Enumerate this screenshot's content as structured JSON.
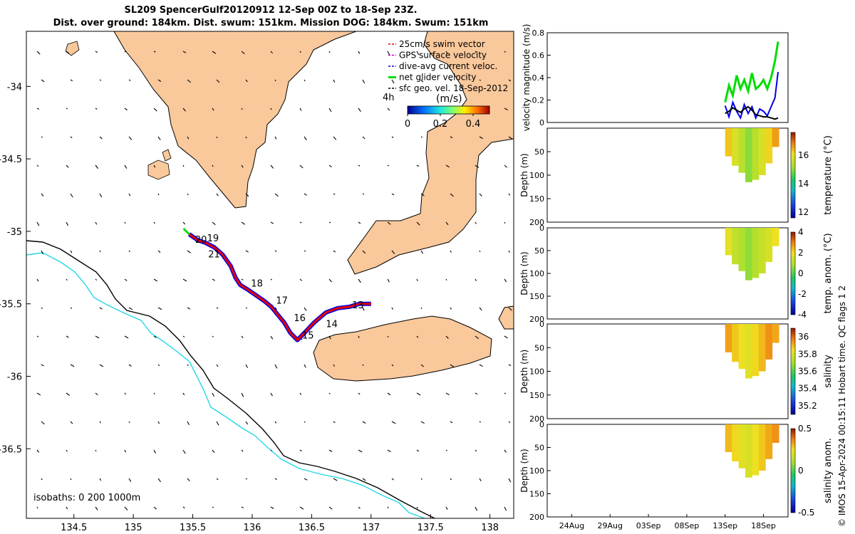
{
  "title": {
    "line1": "SL209 SpencerGulf20120912 12-Sep 00Z to 18-Sep 23Z.",
    "line2": "Dist. over ground: 184km. Dist. swum: 151km. Mission DOG: 184km. Swum: 151km"
  },
  "colors": {
    "land": "#f9c89b",
    "isobath_0": "#000000",
    "isobath_200": "#000000",
    "isobath_1000": "#22d8e6",
    "swim_vector": "#e60000",
    "gps_velocity": "#cc00cc",
    "dive_avg": "#0000e6",
    "net_glider": "#00dd00",
    "sfc_geo": "#000000"
  },
  "map": {
    "xticks": [
      "134.5",
      "135",
      "135.5",
      "136",
      "136.5",
      "137",
      "137.5",
      "138"
    ],
    "yticks": [
      "-34",
      "-34.5",
      "-35",
      "-35.5",
      "-36",
      "-36.5"
    ],
    "isobath_label": "isobaths: 0   200  1000m",
    "colorbar_label": "(m/s)",
    "colorbar_ticks": [
      "0",
      "0.2",
      "0.4"
    ],
    "time_marker": "4h",
    "day_labels": [
      {
        "text": "19",
        "lon": 135.62,
        "lat": -35.07
      },
      {
        "text": "20",
        "lon": 135.52,
        "lat": -35.08
      },
      {
        "text": "21",
        "lon": 135.63,
        "lat": -35.18
      },
      {
        "text": "18",
        "lon": 135.99,
        "lat": -35.38
      },
      {
        "text": "17",
        "lon": 136.2,
        "lat": -35.5
      },
      {
        "text": "16",
        "lon": 136.35,
        "lat": -35.62
      },
      {
        "text": "15",
        "lon": 136.42,
        "lat": -35.74
      },
      {
        "text": "14",
        "lon": 136.62,
        "lat": -35.66
      },
      {
        "text": "13",
        "lon": 136.84,
        "lat": -35.53
      }
    ],
    "legend": [
      {
        "label": "25cm/s swim vector",
        "color": "#e60000",
        "style": "dash"
      },
      {
        "label": "GPS surface velocity",
        "color": "#cc00cc",
        "style": "dash"
      },
      {
        "label": "dive-avg current veloc.",
        "color": "#0000e6",
        "style": "dash"
      },
      {
        "label": "net glider velocity",
        "color": "#00dd00",
        "style": "solid"
      },
      {
        "label": "sfc geo. vel. 18-Sep-2012",
        "color": "#000000",
        "style": "dash"
      }
    ]
  },
  "chart_data": [
    {
      "type": "line",
      "name": "glider track map",
      "xlim": [
        134.1,
        138.2
      ],
      "ylim": [
        -36.98,
        -33.62
      ],
      "track": {
        "x": [
          137.0,
          136.9,
          136.82,
          136.72,
          136.62,
          136.52,
          136.44,
          136.38,
          136.32,
          136.27,
          136.21,
          136.16,
          136.1,
          136.03,
          135.96,
          135.9,
          135.86,
          135.82,
          135.75,
          135.68,
          135.61,
          135.54,
          135.47
        ],
        "y": [
          -35.5,
          -35.5,
          -35.52,
          -35.53,
          -35.56,
          -35.63,
          -35.7,
          -35.75,
          -35.7,
          -35.63,
          -35.57,
          -35.52,
          -35.48,
          -35.44,
          -35.4,
          -35.37,
          -35.32,
          -35.24,
          -35.16,
          -35.11,
          -35.08,
          -35.06,
          -35.02
        ]
      }
    },
    {
      "type": "line",
      "name": "velocity magnitude",
      "ylabel": "velocity magnitude (m/s)",
      "ylim": [
        0,
        0.8
      ],
      "yticks": [
        "0",
        "0.2",
        "0.4",
        "0.6",
        "0.8"
      ],
      "series": [
        {
          "name": "net glider velocity",
          "color": "#00dd00",
          "x": [
            0.0,
            0.5,
            1.0,
            1.5,
            2.0,
            2.5,
            3.0,
            3.5,
            4.0,
            4.5,
            5.0,
            5.5,
            6.0,
            6.5,
            6.9
          ],
          "values": [
            0.18,
            0.33,
            0.24,
            0.42,
            0.3,
            0.38,
            0.28,
            0.44,
            0.3,
            0.33,
            0.38,
            0.3,
            0.4,
            0.55,
            0.72
          ]
        },
        {
          "name": "dive-avg current veloc.",
          "color": "#0000e6",
          "x": [
            0.0,
            0.5,
            1.0,
            1.5,
            2.0,
            2.5,
            3.0,
            3.5,
            4.0,
            4.5,
            5.0,
            5.5,
            6.0,
            6.5,
            6.9
          ],
          "values": [
            0.15,
            0.05,
            0.18,
            0.1,
            0.04,
            0.16,
            0.08,
            0.14,
            0.04,
            0.12,
            0.1,
            0.06,
            0.14,
            0.22,
            0.45
          ]
        },
        {
          "name": "sfc geo. vel.",
          "color": "#000000",
          "x": [
            0.0,
            0.5,
            1.0,
            1.5,
            2.0,
            2.5,
            3.0,
            3.5,
            4.0,
            4.5,
            5.0,
            5.5,
            6.0,
            6.5,
            6.9
          ],
          "values": [
            0.08,
            0.1,
            0.13,
            0.11,
            0.09,
            0.12,
            0.14,
            0.11,
            0.07,
            0.06,
            0.05,
            0.05,
            0.04,
            0.03,
            0.04
          ]
        }
      ]
    },
    {
      "type": "heatmap",
      "name": "temperature section",
      "ylabel": "Depth (m)",
      "ylim": [
        200,
        0
      ],
      "yticks": [
        "50",
        "100",
        "150",
        "200"
      ],
      "colorbar_label": "temperature (°C)",
      "colorbar_ticks": [
        "12",
        "14",
        "16"
      ],
      "colorbar_range": [
        11.6,
        17.6
      ],
      "x": [
        0,
        1,
        2,
        3,
        4,
        5,
        6,
        7
      ],
      "max_depth": [
        60,
        80,
        95,
        115,
        110,
        100,
        75,
        40
      ],
      "values": [
        16.3,
        15.8,
        15.4,
        15.0,
        15.4,
        15.8,
        16.2,
        16.6
      ]
    },
    {
      "type": "heatmap",
      "name": "temperature anomaly section",
      "ylabel": "Depth (m)",
      "ylim": [
        200,
        0
      ],
      "yticks": [
        "0",
        "50",
        "100",
        "150",
        "200"
      ],
      "colorbar_label": "temp. anom. (°C)",
      "colorbar_ticks": [
        "-4",
        "-2",
        "0",
        "2",
        "4"
      ],
      "colorbar_range": [
        -4,
        4
      ],
      "x": [
        0,
        1,
        2,
        3,
        4,
        5,
        6,
        7
      ],
      "max_depth": [
        60,
        80,
        95,
        115,
        110,
        100,
        75,
        40
      ],
      "values": [
        1.8,
        1.2,
        0.9,
        0.6,
        1.0,
        1.3,
        1.6,
        2.0
      ]
    },
    {
      "type": "heatmap",
      "name": "salinity section",
      "ylabel": "Depth (m)",
      "ylim": [
        200,
        0
      ],
      "yticks": [
        "0",
        "50",
        "100",
        "150",
        "200"
      ],
      "colorbar_label": "salinity",
      "colorbar_ticks": [
        "35.2",
        "35.4",
        "35.6",
        "35.8",
        "36"
      ],
      "colorbar_range": [
        35.1,
        36.1
      ],
      "x": [
        0,
        1,
        2,
        3,
        4,
        5,
        6,
        7
      ],
      "max_depth": [
        60,
        80,
        95,
        115,
        110,
        100,
        75,
        40
      ],
      "values": [
        35.93,
        35.88,
        35.84,
        35.82,
        35.86,
        35.9,
        35.95,
        35.92
      ]
    },
    {
      "type": "heatmap",
      "name": "salinity anomaly section",
      "ylabel": "Depth (m)",
      "ylim": [
        200,
        0
      ],
      "yticks": [
        "0",
        "50",
        "100",
        "150",
        "200"
      ],
      "xticks": [
        "24Aug",
        "29Aug",
        "03Sep",
        "08Sep",
        "13Sep",
        "18Sep"
      ],
      "colorbar_label": "salinity anom.",
      "colorbar_ticks": [
        "-0.5",
        "0",
        "0.5"
      ],
      "colorbar_range": [
        -0.5,
        0.5
      ],
      "x": [
        0,
        1,
        2,
        3,
        4,
        5,
        6,
        7
      ],
      "max_depth": [
        60,
        80,
        95,
        115,
        110,
        100,
        75,
        40
      ],
      "values": [
        0.3,
        0.26,
        0.22,
        0.2,
        0.24,
        0.28,
        0.32,
        0.35
      ]
    }
  ],
  "side_label": "© IMOS 15-Apr-2024 00:15:11 Hobart time. QC flags 1  2"
}
